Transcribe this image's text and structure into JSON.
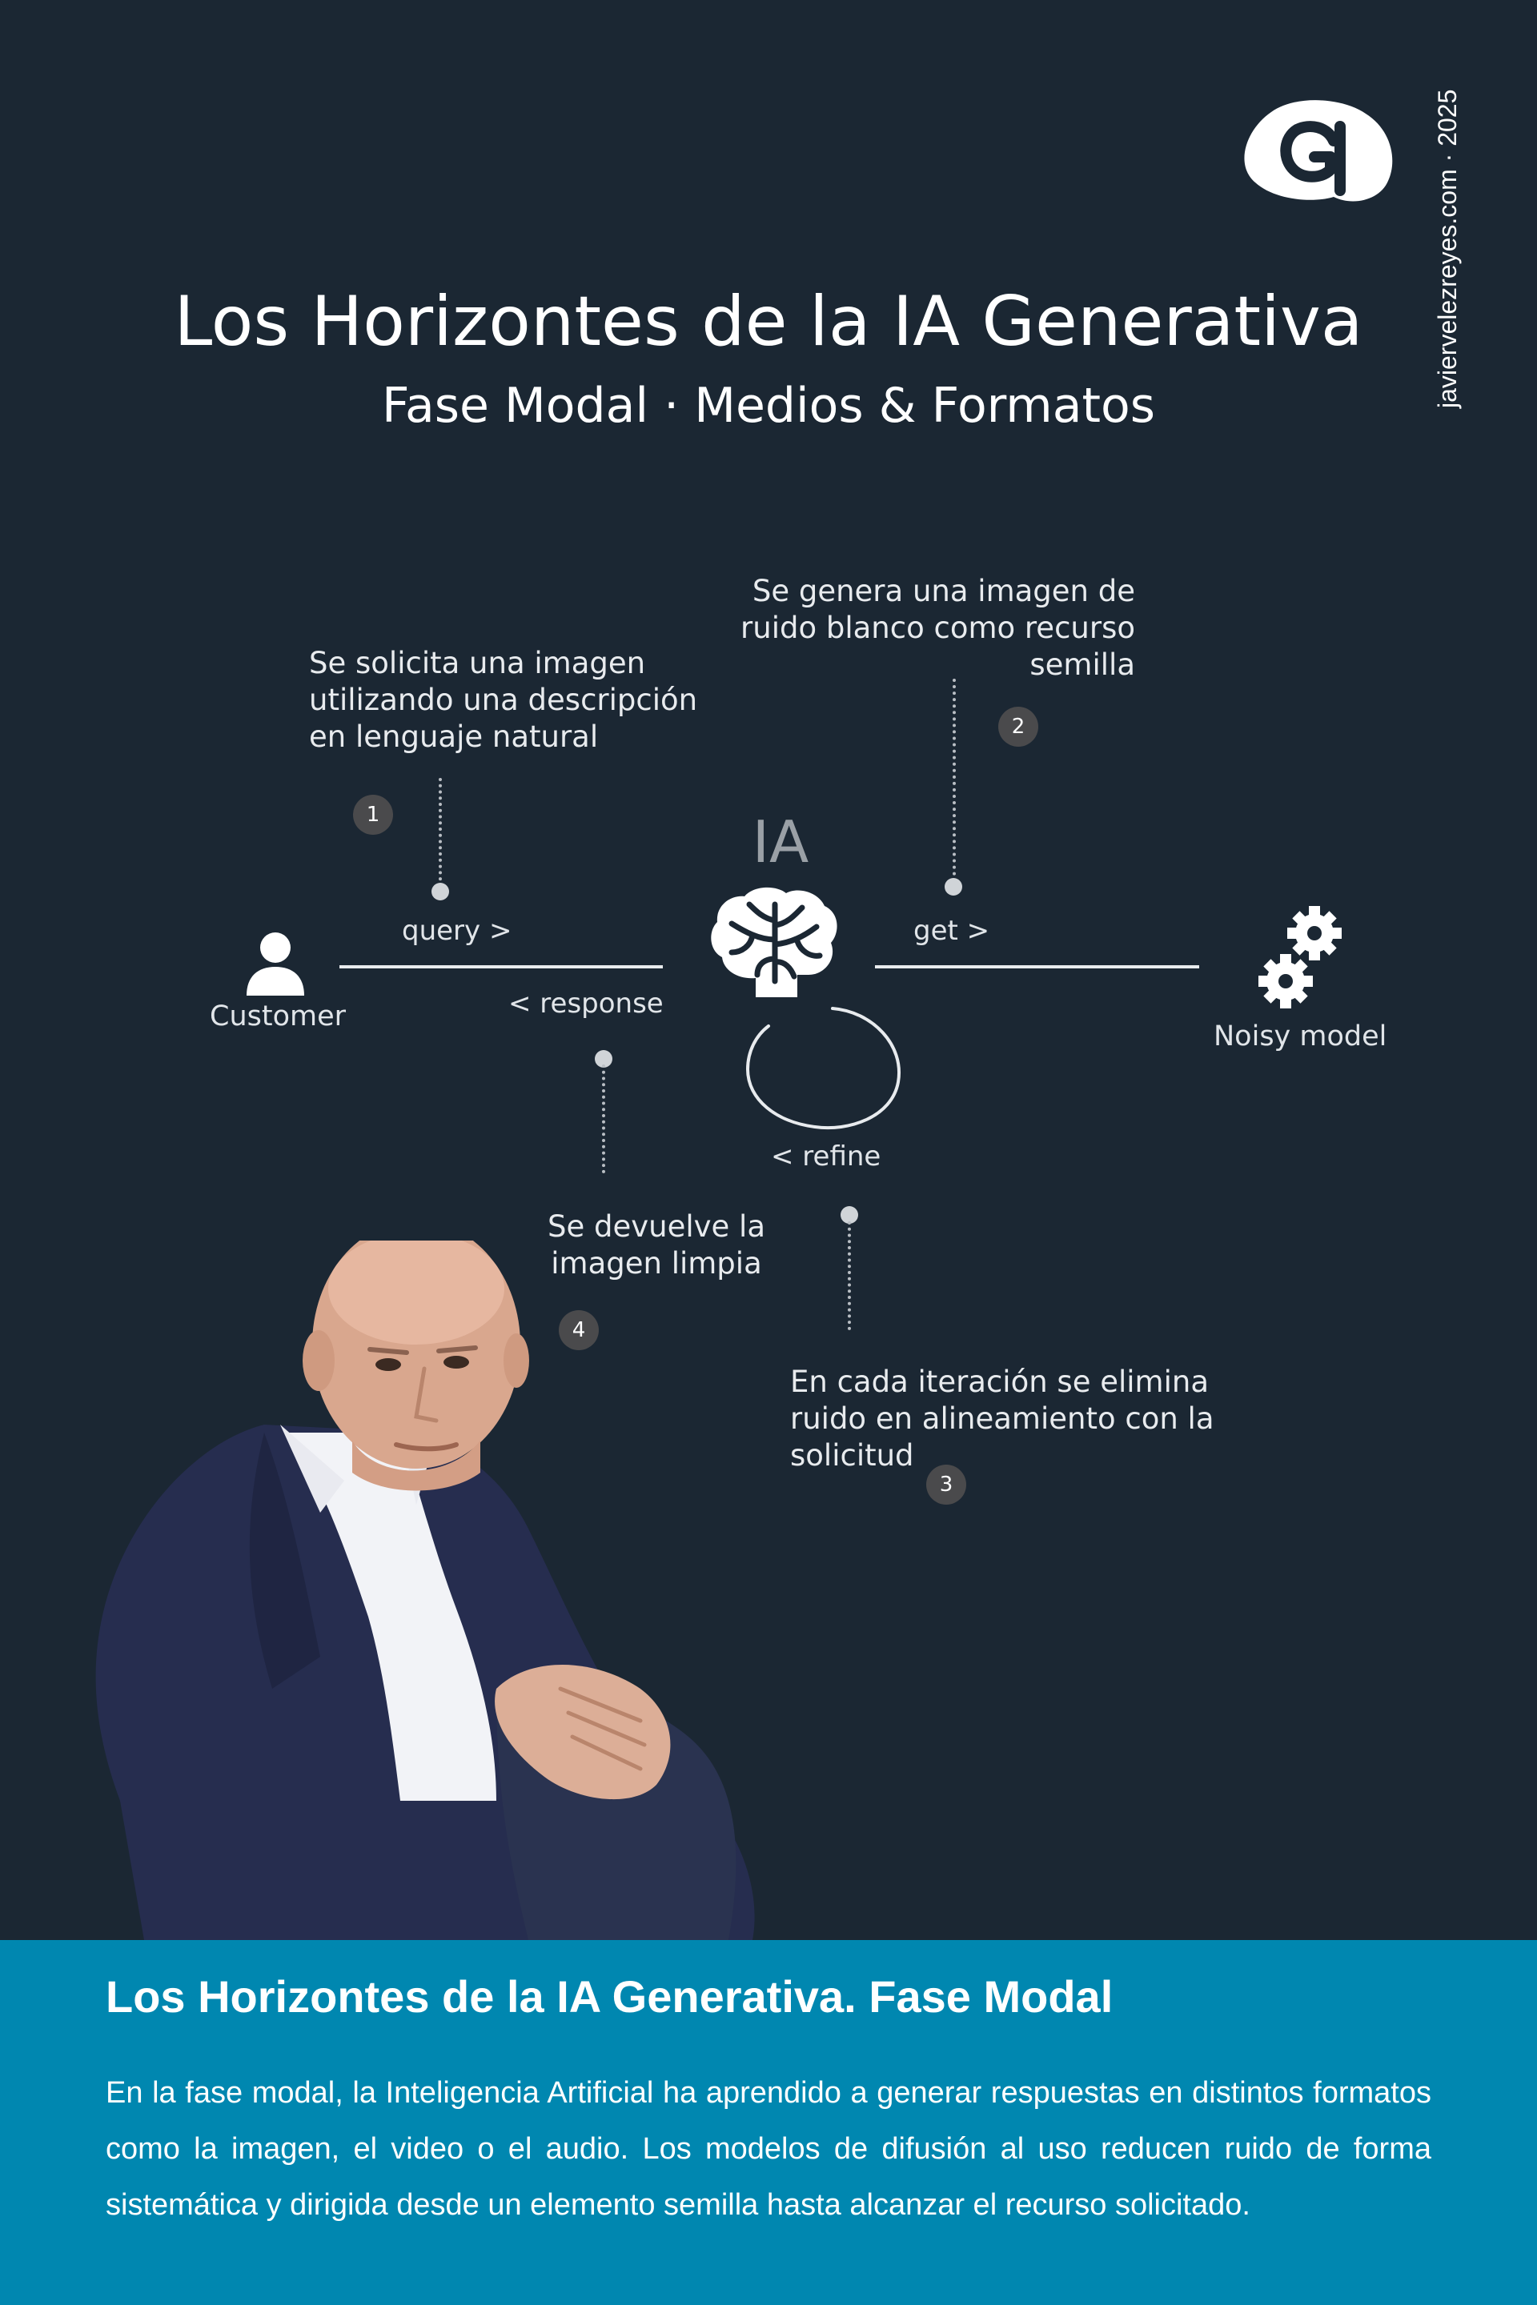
{
  "header": {
    "title": "Los Horizontes de la IA Generativa",
    "subtitle": "Fase Modal · Medios & Formatos",
    "side_text": "javiervelezreyes.com · 2025",
    "logo_icon": "brand-logo-icon"
  },
  "diagram": {
    "center_node": {
      "label": "IA",
      "icon": "brain-icon"
    },
    "nodes": {
      "customer": {
        "label": "Customer",
        "icon": "user-icon"
      },
      "noisy_model": {
        "label": "Noisy model",
        "icon": "gears-icon"
      }
    },
    "edges": {
      "query": "query >",
      "response": "< response",
      "get": "get >",
      "refine": "< refine"
    },
    "steps": [
      {
        "number": "1",
        "text": [
          "Se solicita una imagen",
          "utilizando una descripción",
          "en lenguaje natural"
        ]
      },
      {
        "number": "2",
        "text": [
          "Se genera una imagen de",
          "ruido blanco como recurso",
          "semilla"
        ]
      },
      {
        "number": "3",
        "text": [
          "En cada iteración se elimina",
          "ruido en alineamiento con la",
          "solicitud"
        ]
      },
      {
        "number": "4",
        "text": [
          "Se devuelve la",
          "imagen limpia"
        ]
      }
    ]
  },
  "footer": {
    "title": "Los Horizontes de la IA Generativa. Fase Modal",
    "body": "En la fase modal, la Inteligencia Artificial ha aprendido a generar respuestas en distintos formatos como la imagen, el video o el audio. Los modelos de difusión al uso reducen ruido de forma sistemática y dirigida desde un elemento semilla hasta alcanzar el recurso solicitado."
  },
  "colors": {
    "background": "#1b2733",
    "footer": "#0087b0",
    "badge": "#4a4a4c",
    "line": "#e8ebee"
  }
}
